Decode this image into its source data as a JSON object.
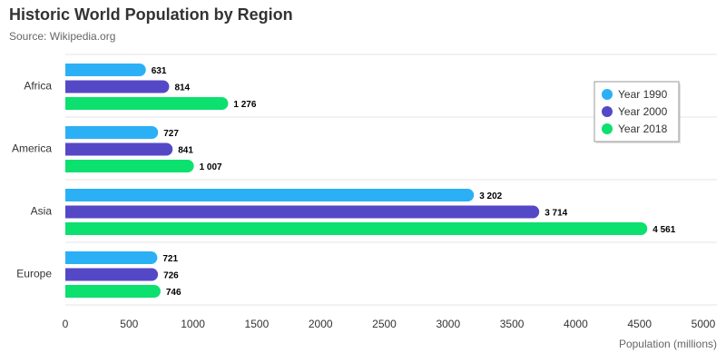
{
  "chart_data": {
    "type": "bar",
    "orientation": "horizontal",
    "title": "Historic World Population by Region",
    "subtitle": "Source: Wikipedia.org",
    "categories": [
      "Africa",
      "America",
      "Asia",
      "Europe"
    ],
    "series": [
      {
        "name": "Year 1990",
        "color": "#2bb0f5",
        "values": [
          631,
          727,
          3202,
          721
        ],
        "labels": [
          "631",
          "727",
          "3 202",
          "721"
        ]
      },
      {
        "name": "Year 2000",
        "color": "#5548c7",
        "values": [
          814,
          841,
          3714,
          726
        ],
        "labels": [
          "814",
          "841",
          "3 714",
          "726"
        ]
      },
      {
        "name": "Year 2018",
        "color": "#0ce06e",
        "values": [
          1276,
          1007,
          4561,
          746
        ],
        "labels": [
          "1 276",
          "1 007",
          "4 561",
          "746"
        ]
      }
    ],
    "xlabel": "Population (millions)",
    "ylabel": "",
    "xlim": [
      0,
      5000
    ],
    "xticks": [
      "0",
      "500",
      "1000",
      "1500",
      "2000",
      "2500",
      "3000",
      "3500",
      "4000",
      "4500",
      "5000"
    ],
    "grid": true,
    "legend_position": "top-right"
  }
}
